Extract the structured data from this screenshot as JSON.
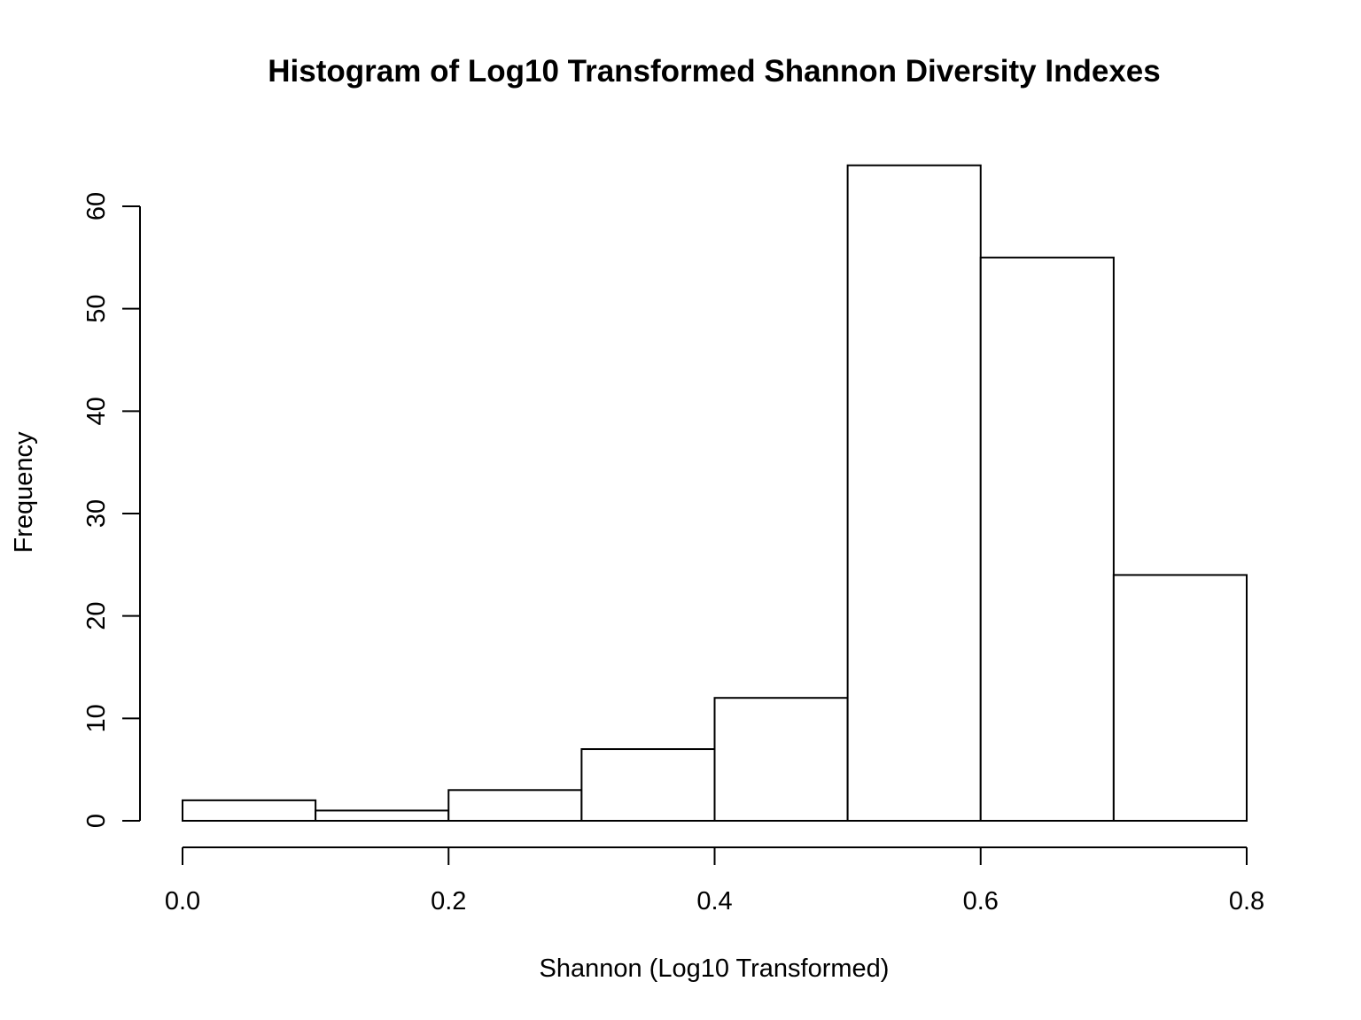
{
  "chart_data": {
    "type": "bar",
    "histogram": true,
    "title": "Histogram of Log10 Transformed Shannon Diversity Indexes",
    "xlabel": "Shannon (Log10 Transformed)",
    "ylabel": "Frequency",
    "bin_edges": [
      0.0,
      0.1,
      0.2,
      0.3,
      0.4,
      0.5,
      0.6,
      0.7,
      0.8
    ],
    "values": [
      2,
      1,
      3,
      7,
      12,
      64,
      55,
      24
    ],
    "xlim": [
      0.0,
      0.8
    ],
    "ylim": [
      0,
      64
    ],
    "x_ticks": [
      0.0,
      0.2,
      0.4,
      0.6,
      0.8
    ],
    "x_tick_labels": [
      "0.0",
      "0.2",
      "0.4",
      "0.6",
      "0.8"
    ],
    "y_ticks": [
      0,
      10,
      20,
      30,
      40,
      50,
      60
    ],
    "y_tick_labels": [
      "0",
      "10",
      "20",
      "30",
      "40",
      "50",
      "60"
    ],
    "grid": false,
    "legend": "none",
    "bar_fill": "#ffffff",
    "bar_stroke": "#000000"
  }
}
